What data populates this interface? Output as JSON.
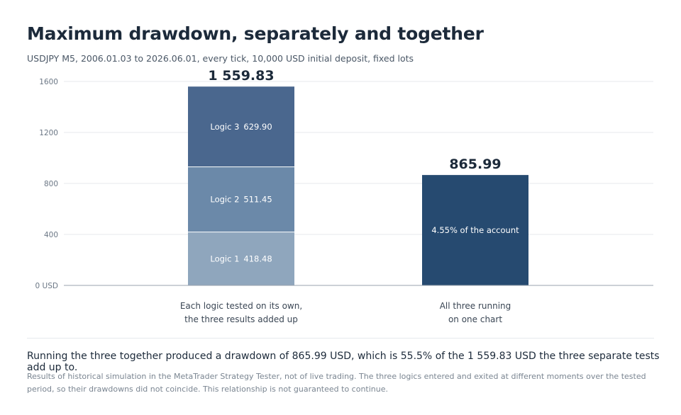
{
  "title": "Maximum drawdown, separately and together",
  "subtitle": "USDJPY M5, 2006.01.03 to 2026.06.01, every tick, 10,000 USD initial deposit, fixed lots",
  "chart_data": {
    "type": "bar",
    "ylim": [
      0,
      1600
    ],
    "yticks": [
      {
        "value": 0,
        "label": "0 USD"
      },
      {
        "value": 400,
        "label": "400"
      },
      {
        "value": 800,
        "label": "800"
      },
      {
        "value": 1200,
        "label": "1200"
      },
      {
        "value": 1600,
        "label": "1600"
      }
    ],
    "grid": true,
    "bars": [
      {
        "category_lines": [
          "Each logic tested on its own,",
          "the three results added up"
        ],
        "total_label": "1 559.83",
        "segments": [
          {
            "name": "Logic 1",
            "value": 418.48,
            "value_label": "418.48",
            "color": "#8fa6bd"
          },
          {
            "name": "Logic 2",
            "value": 511.45,
            "value_label": "511.45",
            "color": "#6b89a9"
          },
          {
            "name": "Logic 3",
            "value": 629.9,
            "value_label": "629.90",
            "color": "#4a678e"
          }
        ]
      },
      {
        "category_lines": [
          "All three running",
          "on one chart"
        ],
        "total_label": "865.99",
        "segments": [
          {
            "name": "",
            "value": 865.99,
            "value_label": "4.55% of the account",
            "color": "#264a70"
          }
        ]
      }
    ]
  },
  "summary": "Running the three together produced a drawdown of 865.99 USD, which is 55.5% of the 1 559.83 USD the three separate tests add up to.",
  "footnote": "Results of historical simulation in the MetaTrader Strategy Tester, not of live trading. The three logics entered and exited at different moments over the tested period, so their drawdowns did not coincide. This relationship is not guaranteed to continue."
}
